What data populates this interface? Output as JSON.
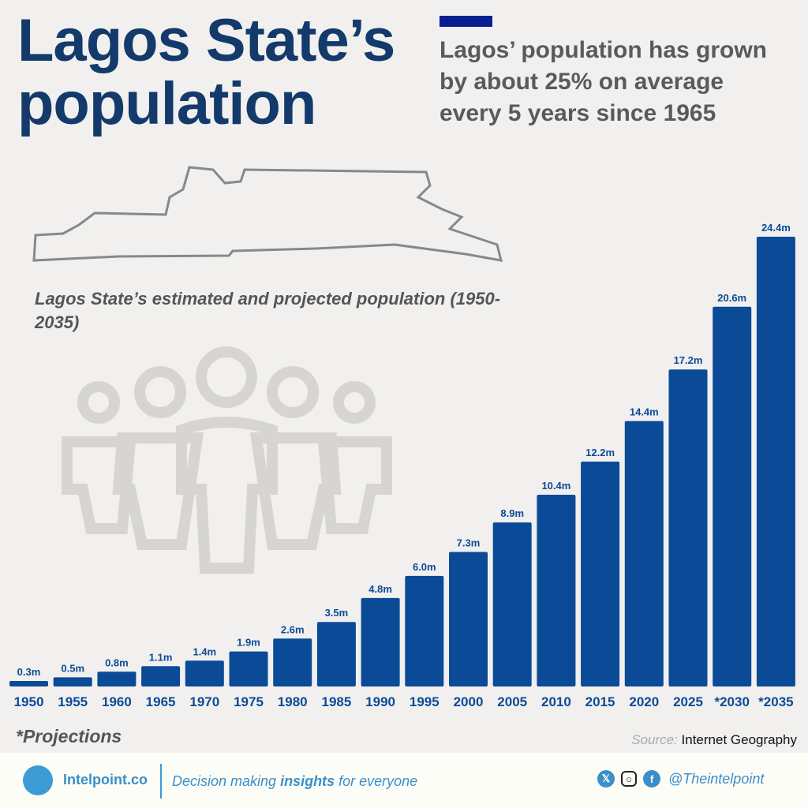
{
  "header": {
    "title_line1": "Lagos State’s",
    "title_line2": "population",
    "subtitle_line1": "Lagos’ population has grown",
    "subtitle_line2": "by about 25% on average",
    "subtitle_line3": "every 5 years since 1965"
  },
  "chart_data": {
    "type": "bar",
    "title": "Lagos State’s estimated and projected population (1950-2035)",
    "categories": [
      "1950",
      "1955",
      "1960",
      "1965",
      "1970",
      "1975",
      "1980",
      "1985",
      "1990",
      "1995",
      "2000",
      "2005",
      "2010",
      "2015",
      "2020",
      "2025",
      "*2030",
      "*2035"
    ],
    "values": [
      0.3,
      0.5,
      0.8,
      1.1,
      1.4,
      1.9,
      2.6,
      3.5,
      4.8,
      6.0,
      7.3,
      8.9,
      10.4,
      12.2,
      14.4,
      17.2,
      20.6,
      24.4
    ],
    "labels": [
      "0.3m",
      "0.5m",
      "0.8m",
      "1.1m",
      "1.4m",
      "1.9m",
      "2.6m",
      "3.5m",
      "4.8m",
      "6.0m",
      "7.3m",
      "8.9m",
      "10.4m",
      "12.2m",
      "14.4m",
      "17.2m",
      "20.6m",
      "24.4m"
    ],
    "unit": "million",
    "bar_color": "#0b4a97",
    "grid": false,
    "ylim": [
      0,
      24.4
    ]
  },
  "notes": {
    "projections": "*Projections",
    "source_label": "Source:",
    "source": "Internet Geography"
  },
  "footer": {
    "brand": "Intelpoint.co",
    "tagline_pre": "Decision making ",
    "tagline_bold": "insights",
    "tagline_post": " for everyone",
    "handle": "@Theintelpoint",
    "icons": [
      "x-icon",
      "instagram-icon",
      "facebook-icon"
    ]
  }
}
